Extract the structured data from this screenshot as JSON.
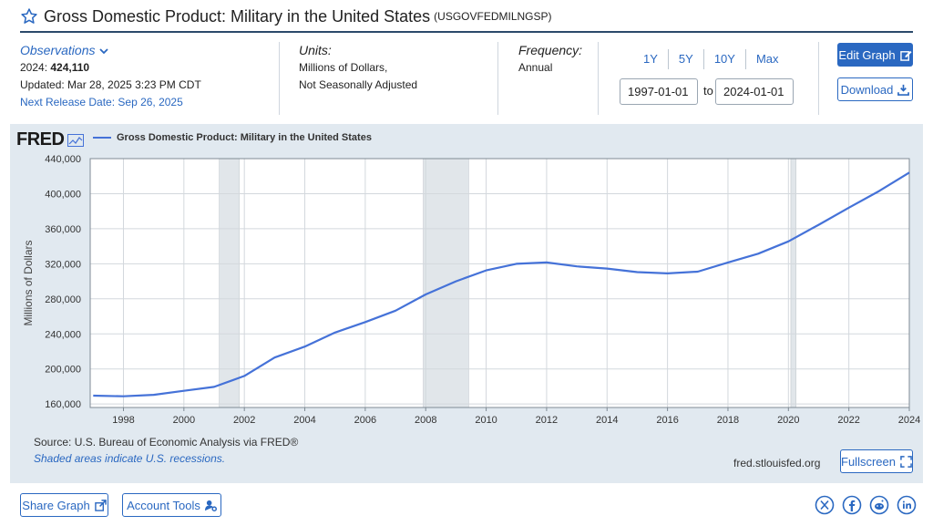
{
  "header": {
    "title": "Gross Domestic Product: Military in the United States",
    "series_id": "(USGOVFEDMILNGSP)"
  },
  "meta": {
    "observations_label": "Observations",
    "latest_year_label": "2024:",
    "latest_value": "424,110",
    "updated": "Updated: Mar 28, 2025 3:23 PM CDT",
    "next_release": "Next Release Date: Sep 26, 2025",
    "units_label": "Units:",
    "units_line1": "Millions of Dollars,",
    "units_line2": "Not Seasonally Adjusted",
    "frequency_label": "Frequency:",
    "frequency_value": "Annual"
  },
  "controls": {
    "range_buttons": [
      "1Y",
      "5Y",
      "10Y",
      "Max"
    ],
    "start_date": "1997-01-01",
    "to_label": "to",
    "end_date": "2024-01-01",
    "edit_label": "Edit Graph",
    "download_label": "Download"
  },
  "chart_panel": {
    "logo": "FRED",
    "source": "Source: U.S. Bureau of Economic Analysis via FRED®",
    "shaded_note": "Shaded areas indicate U.S. recessions.",
    "site": "fred.stlouisfed.org",
    "fullscreen_label": "Fullscreen"
  },
  "footer": {
    "share_label": "Share Graph",
    "tools_label": "Account Tools"
  },
  "colors": {
    "accent": "#2a68c1",
    "line": "#4572d8",
    "panel": "#e1e9f0",
    "recession": "#e1e6ea"
  },
  "icons": [
    "star-icon",
    "chevron-down-icon",
    "edit-icon",
    "download-icon",
    "fullscreen-icon",
    "share-icon",
    "user-gear-icon",
    "x-icon",
    "facebook-icon",
    "reddit-icon",
    "linkedin-icon"
  ],
  "chart_data": {
    "type": "line",
    "series": [
      {
        "name": "Gross Domestic Product: Military in the United States",
        "x": [
          1997,
          1998,
          1999,
          2000,
          2001,
          2002,
          2003,
          2004,
          2005,
          2006,
          2007,
          2008,
          2009,
          2010,
          2011,
          2012,
          2013,
          2014,
          2015,
          2016,
          2017,
          2018,
          2019,
          2020,
          2021,
          2022,
          2023,
          2024
        ],
        "values": [
          169500,
          168800,
          170500,
          175000,
          179500,
          192000,
          213000,
          225500,
          241500,
          253500,
          266500,
          285000,
          300000,
          312500,
          320000,
          321500,
          317000,
          314500,
          310500,
          309000,
          311000,
          321500,
          331500,
          345500,
          364500,
          384000,
          403000,
          424110
        ]
      }
    ],
    "recessions": [
      [
        2001.17,
        2001.83
      ],
      [
        2007.92,
        2009.42
      ],
      [
        2020.08,
        2020.25
      ]
    ],
    "ylabel": "Millions of Dollars",
    "ylim": [
      156000,
      440000
    ],
    "xlim": [
      1996.9,
      2024
    ],
    "y_ticks": [
      160000,
      200000,
      240000,
      280000,
      320000,
      360000,
      400000,
      440000
    ],
    "y_tick_labels": [
      "160,000",
      "200,000",
      "240,000",
      "280,000",
      "320,000",
      "360,000",
      "400,000",
      "440,000"
    ],
    "x_ticks": [
      1998,
      2000,
      2002,
      2004,
      2006,
      2008,
      2010,
      2012,
      2014,
      2016,
      2018,
      2020,
      2022,
      2024
    ],
    "x_tick_labels": [
      "1998",
      "2000",
      "2002",
      "2004",
      "2006",
      "2008",
      "2010",
      "2012",
      "2014",
      "2016",
      "2018",
      "2020",
      "2022",
      "2024"
    ],
    "grid": true
  }
}
